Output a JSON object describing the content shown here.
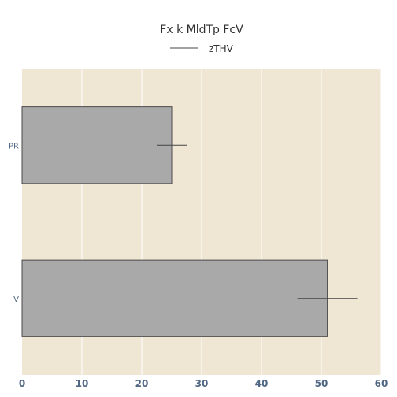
{
  "chart_data": {
    "type": "bar",
    "orientation": "horizontal",
    "title": "Fx k MldTp FcV",
    "categories": [
      "PR",
      "V"
    ],
    "series": [
      {
        "name": "zTHV",
        "values": [
          25,
          51
        ],
        "error_low": [
          22.5,
          46
        ],
        "error_high": [
          27.5,
          56
        ]
      }
    ],
    "xlim": [
      0,
      60
    ],
    "xticks": [
      0,
      10,
      20,
      30,
      40,
      50,
      60
    ],
    "grid": true,
    "legend_position": "top-center",
    "colors": {
      "plot_background": "#efe7d4",
      "bar_fill": "#a9a9a9",
      "bar_stroke": "#4a4a4a",
      "grid": "#ffffff",
      "error_bar": "#444444"
    }
  }
}
